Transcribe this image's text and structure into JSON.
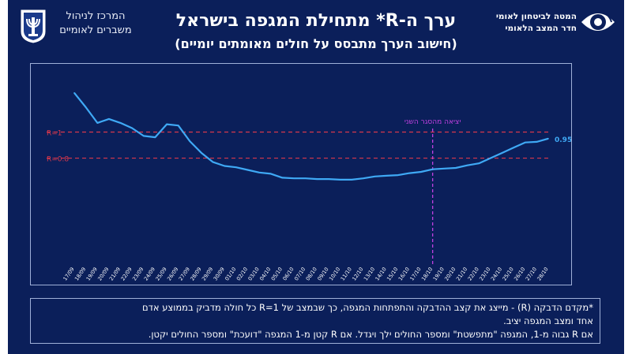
{
  "header": {
    "org_left_line1": "המרכז לניהול",
    "org_left_line2": "משברים לאומיים",
    "org_right_line1": "המטה לביטחון לאומי",
    "org_right_line2": "חדר המצב הלאומי",
    "title": "ערך ה-R* מתחילת המגפה בישראל",
    "subtitle": "(חישוב הערך מתבסס על חולים מאומתים יומיים)"
  },
  "colors": {
    "background": "#0b1f5a",
    "line": "#3fa9f5",
    "reference_line": "#d9374b",
    "event_line": "#c040e0"
  },
  "chart_data": {
    "type": "line",
    "title": "ערך ה-R* מתחילת המגפה בישראל",
    "categories": [
      "17/09",
      "18/09",
      "19/09",
      "20/09",
      "21/09",
      "22/09",
      "23/09",
      "24/09",
      "25/09",
      "26/09",
      "27/09",
      "28/09",
      "29/09",
      "30/09",
      "01/10",
      "02/10",
      "03/10",
      "04/10",
      "05/10",
      "06/10",
      "07/10",
      "08/10",
      "09/10",
      "10/10",
      "11/10",
      "12/10",
      "13/10",
      "14/10",
      "15/10",
      "16/10",
      "17/10",
      "18/10",
      "19/10",
      "20/10",
      "21/10",
      "22/10",
      "23/10",
      "24/10",
      "25/10",
      "26/10",
      "27/10",
      "28/10"
    ],
    "series": [
      {
        "values": [
          1.3,
          1.19,
          1.07,
          1.1,
          1.07,
          1.03,
          0.97,
          0.96,
          1.06,
          1.05,
          0.93,
          0.84,
          0.77,
          0.74,
          0.73,
          0.71,
          0.69,
          0.68,
          0.65,
          0.645,
          0.645,
          0.64,
          0.64,
          0.635,
          0.635,
          0.645,
          0.66,
          0.665,
          0.67,
          0.685,
          0.695,
          0.715,
          0.72,
          0.725,
          0.745,
          0.76,
          0.8,
          0.84,
          0.88,
          0.92,
          0.925,
          0.95
        ],
        "end_label": "0.95"
      }
    ],
    "reference_lines": [
      {
        "label": "R=1",
        "value": 1.0
      },
      {
        "label": "R=0.8",
        "value": 0.8
      }
    ],
    "event": {
      "label": "יציאה מהסגר השני",
      "category": "18/10"
    },
    "ylim": [
      0,
      1.45
    ],
    "xlabel": "",
    "ylabel": "",
    "grid": false
  },
  "note": {
    "line1": "*מקדם הדבקה (R) - מייצג את קצב ההדבקה והתפתחות המגפה, כך שבמצב של R=1 כל חולה מדביק בממוצע אדם",
    "line2": "אחד ומצב המגפה יציב.",
    "line3": "אם R גבוה מ-1, המגפה \"מתפשטת\" ומספר החולים ילך ויגדל. אם R קטן מ-1 המגפה \"דועכת\" ומספר החולים יקטן."
  }
}
